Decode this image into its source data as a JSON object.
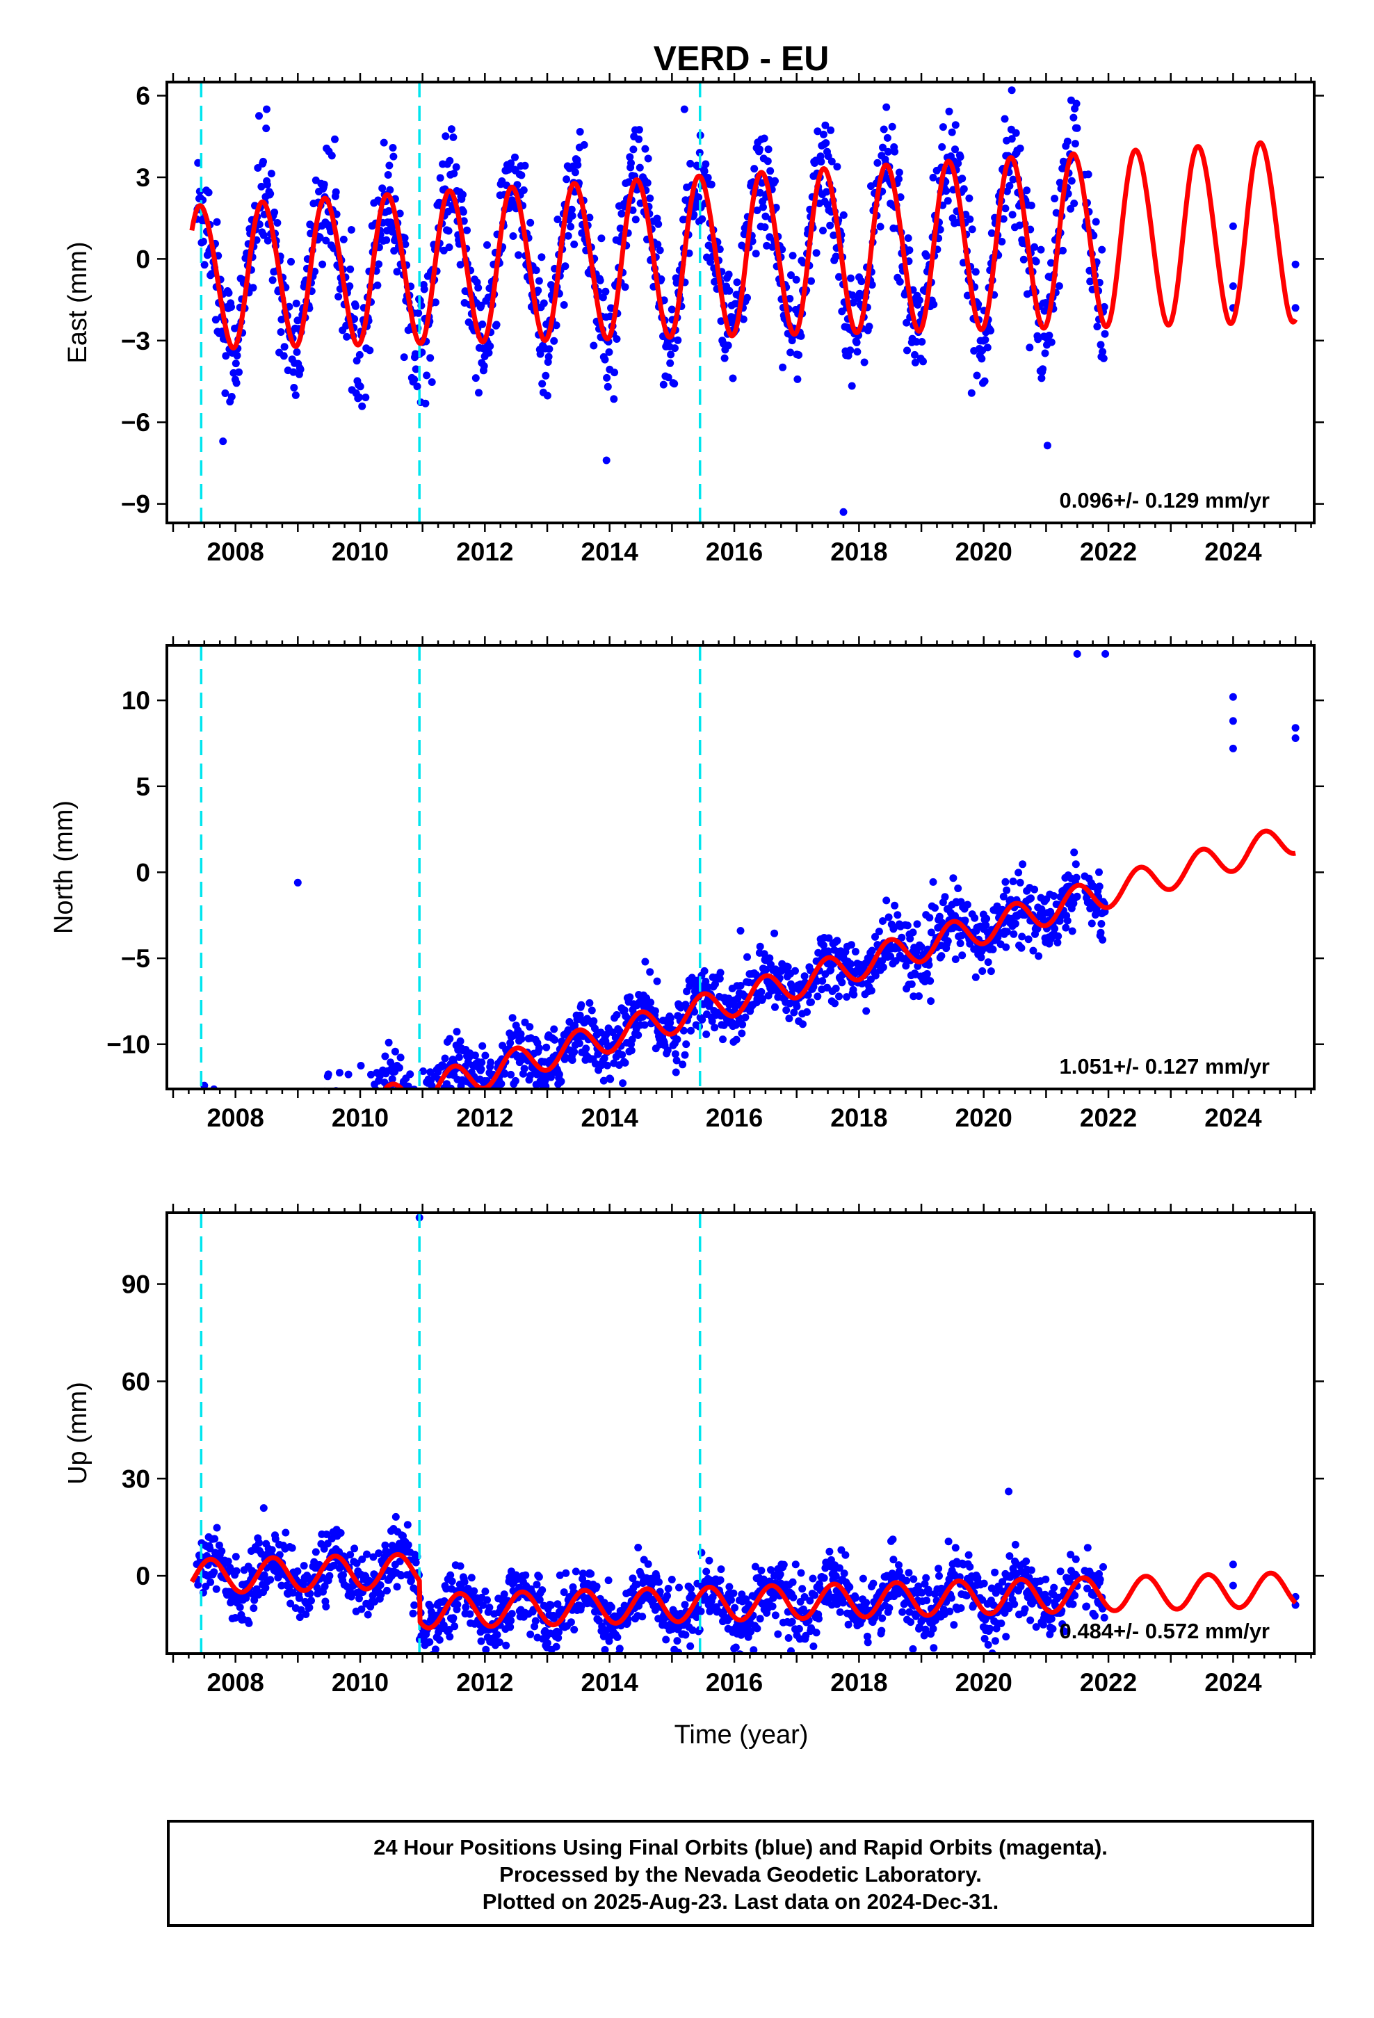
{
  "chart_data": {
    "title": "VERD - EU",
    "type": "scatter",
    "x_axis": {
      "label": "Time (year)",
      "range": [
        2006.9,
        2025.3
      ],
      "ticks": [
        "2008",
        "2010",
        "2012",
        "2014",
        "2016",
        "2018",
        "2020",
        "2022",
        "2024"
      ]
    },
    "equipment_changes": [
      2007.45,
      2010.95,
      2015.45
    ],
    "colors": {
      "observations": "#0000ff",
      "model": "#ff0000",
      "equipment_change": "#00e5ee"
    },
    "legend": "none",
    "grid": false,
    "panels": [
      {
        "id": "east",
        "ylabel": "East (mm)",
        "ylim": [
          -9.7,
          6.5
        ],
        "yticks": [
          6,
          3,
          0,
          -3,
          -6,
          -9
        ],
        "ytick_labels": [
          "6",
          "3",
          "0",
          "−3",
          "−6",
          "−9"
        ],
        "rate": "0.096+/- 0.129 mm/yr",
        "model": {
          "velocity": 0.096,
          "offset": 0.1,
          "amp": 2.6,
          "amp_trend": 0.04,
          "phase_peak": 0.45,
          "semi": 0.15
        },
        "observations": {
          "scatter": 1.1,
          "data_end": 2021.95,
          "late_points": [
            [
              2024.0,
              1.2
            ],
            [
              2024.0,
              -1.0
            ],
            [
              2024.0,
              -1.8
            ],
            [
              2025.0,
              -0.2
            ],
            [
              2025.0,
              -1.8
            ]
          ],
          "outliers": [
            [
              2007.8,
              -6.7
            ],
            [
              2013.95,
              -7.4
            ],
            [
              2017.75,
              -9.3
            ],
            [
              2020.45,
              6.2
            ],
            [
              2015.2,
              5.5
            ],
            [
              2008.5,
              5.5
            ]
          ]
        }
      },
      {
        "id": "north",
        "ylabel": "North (mm)",
        "ylim": [
          -12.6,
          13.2
        ],
        "yticks": [
          10,
          5,
          0,
          -5,
          -10
        ],
        "ytick_labels": [
          "10",
          "5",
          "0",
          "−5",
          "−10"
        ],
        "rate": "1.051+/- 0.127 mm/yr",
        "model": {
          "velocity": 1.051,
          "offset": -8.5,
          "amp": 0.9,
          "amp_trend": 0.0,
          "phase_peak": 0.5,
          "semi": 0.0
        },
        "observations": {
          "scatter": 0.95,
          "data_end": 2021.95,
          "late_points": [
            [
              2024.0,
              10.2
            ],
            [
              2024.0,
              8.8
            ],
            [
              2024.0,
              7.2
            ],
            [
              2025.0,
              8.4
            ],
            [
              2025.0,
              7.8
            ]
          ],
          "outliers": [
            [
              2021.5,
              12.7
            ],
            [
              2021.95,
              12.7
            ],
            [
              2007.5,
              -12.4
            ],
            [
              2009.0,
              -0.6
            ],
            [
              2016.1,
              -3.4
            ]
          ]
        }
      },
      {
        "id": "up",
        "ylabel": "Up (mm)",
        "ylim": [
          -24,
          112
        ],
        "yticks": [
          90,
          60,
          30,
          0
        ],
        "ytick_labels": [
          "90",
          "60",
          "30",
          "0"
        ],
        "rate": "0.484+/- 0.572 mm/yr",
        "model": {
          "velocity": 0.484,
          "offset": 3.5,
          "amp": 5.2,
          "amp_trend": 0.0,
          "phase_peak": 0.6,
          "semi": 0.0,
          "step_year": 2010.95,
          "step": -12.5
        },
        "observations": {
          "scatter": 4.8,
          "data_end": 2021.95,
          "late_points": [
            [
              2024.0,
              3.5
            ],
            [
              2024.0,
              -3.0
            ],
            [
              2025.0,
              -6.5
            ],
            [
              2025.0,
              -9.0
            ]
          ],
          "outliers": [
            [
              2010.95,
              110.5
            ],
            [
              2016.7,
              -18.0
            ],
            [
              2020.4,
              26.0
            ]
          ]
        }
      }
    ]
  },
  "footer": {
    "line1": "24 Hour Positions Using Final Orbits (blue) and Rapid Orbits (magenta).",
    "line2": "Processed by the Nevada Geodetic Laboratory.",
    "line3": "Plotted on 2025-Aug-23. Last data on 2024-Dec-31."
  }
}
